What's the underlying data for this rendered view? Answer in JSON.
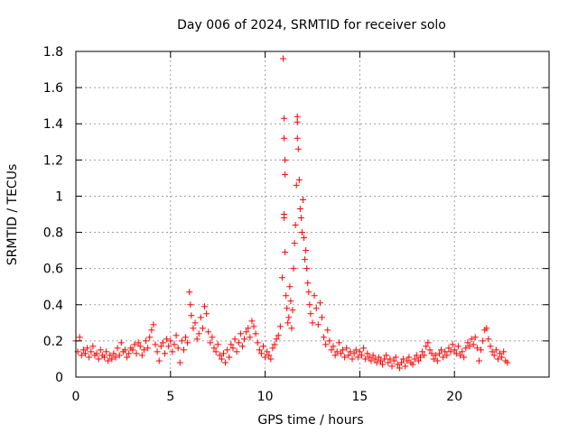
{
  "chart_data": {
    "type": "scatter",
    "title": "Day 006 of 2024, SRMTID for receiver solo",
    "xlabel": "GPS time / hours",
    "ylabel": "SRMTID / TECUs",
    "xlim": [
      0,
      25
    ],
    "ylim": [
      0,
      1.8
    ],
    "x_ticks": [
      0,
      5,
      10,
      15,
      20
    ],
    "x_tick_labels": [
      "0",
      "5",
      "10",
      "15",
      "20"
    ],
    "y_ticks": [
      0,
      0.2,
      0.4,
      0.6,
      0.8,
      1,
      1.2,
      1.4,
      1.6,
      1.8
    ],
    "y_tick_labels": [
      "0",
      "0.2",
      "0.4",
      "0.6",
      "0.8",
      "1",
      "1.2",
      "1.4",
      "1.6",
      "1.8"
    ],
    "grid": true,
    "marker": "plus",
    "series": [
      {
        "name": "SRMTID",
        "color": "#ff0000",
        "points": [
          [
            0.0,
            0.2
          ],
          [
            0.1,
            0.14
          ],
          [
            0.2,
            0.22
          ],
          [
            0.3,
            0.12
          ],
          [
            0.4,
            0.15
          ],
          [
            0.5,
            0.13
          ],
          [
            0.6,
            0.16
          ],
          [
            0.7,
            0.11
          ],
          [
            0.8,
            0.14
          ],
          [
            0.9,
            0.17
          ],
          [
            1.0,
            0.12
          ],
          [
            1.1,
            0.13
          ],
          [
            1.2,
            0.1
          ],
          [
            1.3,
            0.15
          ],
          [
            1.4,
            0.12
          ],
          [
            1.5,
            0.11
          ],
          [
            1.6,
            0.14
          ],
          [
            1.7,
            0.09
          ],
          [
            1.8,
            0.12
          ],
          [
            1.9,
            0.1
          ],
          [
            2.0,
            0.13
          ],
          [
            2.1,
            0.11
          ],
          [
            2.2,
            0.16
          ],
          [
            2.3,
            0.12
          ],
          [
            2.4,
            0.19
          ],
          [
            2.5,
            0.14
          ],
          [
            2.6,
            0.15
          ],
          [
            2.7,
            0.11
          ],
          [
            2.8,
            0.13
          ],
          [
            2.9,
            0.16
          ],
          [
            3.0,
            0.15
          ],
          [
            3.1,
            0.18
          ],
          [
            3.2,
            0.13
          ],
          [
            3.3,
            0.19
          ],
          [
            3.4,
            0.17
          ],
          [
            3.5,
            0.12
          ],
          [
            3.6,
            0.15
          ],
          [
            3.7,
            0.2
          ],
          [
            3.8,
            0.16
          ],
          [
            3.9,
            0.22
          ],
          [
            4.0,
            0.26
          ],
          [
            4.1,
            0.29
          ],
          [
            4.2,
            0.18
          ],
          [
            4.3,
            0.14
          ],
          [
            4.4,
            0.09
          ],
          [
            4.5,
            0.17
          ],
          [
            4.6,
            0.19
          ],
          [
            4.7,
            0.13
          ],
          [
            4.8,
            0.21
          ],
          [
            4.9,
            0.17
          ],
          [
            5.0,
            0.2
          ],
          [
            5.1,
            0.14
          ],
          [
            5.2,
            0.18
          ],
          [
            5.3,
            0.23
          ],
          [
            5.4,
            0.16
          ],
          [
            5.5,
            0.08
          ],
          [
            5.6,
            0.2
          ],
          [
            5.7,
            0.15
          ],
          [
            5.8,
            0.22
          ],
          [
            5.9,
            0.19
          ],
          [
            6.0,
            0.47
          ],
          [
            6.05,
            0.4
          ],
          [
            6.1,
            0.34
          ],
          [
            6.2,
            0.27
          ],
          [
            6.3,
            0.3
          ],
          [
            6.4,
            0.21
          ],
          [
            6.5,
            0.24
          ],
          [
            6.6,
            0.33
          ],
          [
            6.7,
            0.27
          ],
          [
            6.8,
            0.39
          ],
          [
            6.9,
            0.35
          ],
          [
            7.0,
            0.25
          ],
          [
            7.1,
            0.19
          ],
          [
            7.2,
            0.22
          ],
          [
            7.3,
            0.16
          ],
          [
            7.4,
            0.14
          ],
          [
            7.5,
            0.18
          ],
          [
            7.6,
            0.12
          ],
          [
            7.7,
            0.1
          ],
          [
            7.8,
            0.13
          ],
          [
            7.9,
            0.08
          ],
          [
            8.0,
            0.15
          ],
          [
            8.1,
            0.11
          ],
          [
            8.2,
            0.18
          ],
          [
            8.3,
            0.16
          ],
          [
            8.4,
            0.21
          ],
          [
            8.5,
            0.14
          ],
          [
            8.6,
            0.19
          ],
          [
            8.7,
            0.24
          ],
          [
            8.8,
            0.17
          ],
          [
            8.9,
            0.21
          ],
          [
            9.0,
            0.25
          ],
          [
            9.1,
            0.27
          ],
          [
            9.2,
            0.22
          ],
          [
            9.3,
            0.31
          ],
          [
            9.4,
            0.28
          ],
          [
            9.5,
            0.24
          ],
          [
            9.6,
            0.19
          ],
          [
            9.7,
            0.15
          ],
          [
            9.8,
            0.13
          ],
          [
            9.9,
            0.17
          ],
          [
            10.0,
            0.11
          ],
          [
            10.1,
            0.14
          ],
          [
            10.2,
            0.12
          ],
          [
            10.3,
            0.1
          ],
          [
            10.4,
            0.16
          ],
          [
            10.5,
            0.18
          ],
          [
            10.6,
            0.21
          ],
          [
            10.7,
            0.23
          ],
          [
            10.8,
            0.28
          ],
          [
            10.9,
            0.55
          ],
          [
            10.95,
            1.76
          ],
          [
            11.0,
            1.43
          ],
          [
            11.0,
            1.32
          ],
          [
            11.05,
            1.2
          ],
          [
            11.05,
            1.12
          ],
          [
            11.0,
            0.9
          ],
          [
            11.0,
            0.88
          ],
          [
            11.05,
            0.69
          ],
          [
            11.1,
            0.45
          ],
          [
            11.15,
            0.38
          ],
          [
            11.2,
            0.3
          ],
          [
            11.25,
            0.33
          ],
          [
            11.3,
            0.5
          ],
          [
            11.35,
            0.42
          ],
          [
            11.4,
            0.27
          ],
          [
            11.45,
            0.37
          ],
          [
            11.5,
            0.6
          ],
          [
            11.55,
            0.74
          ],
          [
            11.6,
            0.84
          ],
          [
            11.65,
            1.06
          ],
          [
            11.7,
            1.44
          ],
          [
            11.7,
            1.41
          ],
          [
            11.7,
            1.32
          ],
          [
            11.75,
            1.26
          ],
          [
            11.8,
            1.09
          ],
          [
            11.85,
            0.93
          ],
          [
            11.9,
            0.88
          ],
          [
            11.95,
            0.8
          ],
          [
            12.0,
            0.98
          ],
          [
            12.05,
            0.77
          ],
          [
            12.1,
            0.65
          ],
          [
            12.15,
            0.7
          ],
          [
            12.2,
            0.6
          ],
          [
            12.25,
            0.52
          ],
          [
            12.3,
            0.47
          ],
          [
            12.35,
            0.4
          ],
          [
            12.4,
            0.35
          ],
          [
            12.5,
            0.3
          ],
          [
            12.6,
            0.45
          ],
          [
            12.7,
            0.38
          ],
          [
            12.8,
            0.29
          ],
          [
            12.9,
            0.41
          ],
          [
            13.0,
            0.33
          ],
          [
            13.1,
            0.22
          ],
          [
            13.2,
            0.18
          ],
          [
            13.3,
            0.26
          ],
          [
            13.4,
            0.2
          ],
          [
            13.5,
            0.15
          ],
          [
            13.6,
            0.17
          ],
          [
            13.7,
            0.12
          ],
          [
            13.8,
            0.14
          ],
          [
            13.9,
            0.19
          ],
          [
            14.0,
            0.13
          ],
          [
            14.1,
            0.15
          ],
          [
            14.2,
            0.11
          ],
          [
            14.3,
            0.16
          ],
          [
            14.4,
            0.12
          ],
          [
            14.5,
            0.14
          ],
          [
            14.6,
            0.1
          ],
          [
            14.7,
            0.13
          ],
          [
            14.8,
            0.15
          ],
          [
            14.9,
            0.11
          ],
          [
            15.0,
            0.14
          ],
          [
            15.1,
            0.12
          ],
          [
            15.2,
            0.16
          ],
          [
            15.3,
            0.1
          ],
          [
            15.4,
            0.13
          ],
          [
            15.5,
            0.11
          ],
          [
            15.6,
            0.09
          ],
          [
            15.7,
            0.12
          ],
          [
            15.8,
            0.1
          ],
          [
            15.9,
            0.08
          ],
          [
            16.0,
            0.11
          ],
          [
            16.1,
            0.09
          ],
          [
            16.2,
            0.07
          ],
          [
            16.3,
            0.1
          ],
          [
            16.4,
            0.12
          ],
          [
            16.5,
            0.08
          ],
          [
            16.6,
            0.1
          ],
          [
            16.7,
            0.06
          ],
          [
            16.8,
            0.09
          ],
          [
            16.9,
            0.11
          ],
          [
            17.0,
            0.07
          ],
          [
            17.1,
            0.05
          ],
          [
            17.2,
            0.08
          ],
          [
            17.3,
            0.1
          ],
          [
            17.4,
            0.06
          ],
          [
            17.5,
            0.09
          ],
          [
            17.6,
            0.11
          ],
          [
            17.7,
            0.08
          ],
          [
            17.8,
            0.07
          ],
          [
            17.9,
            0.1
          ],
          [
            18.0,
            0.12
          ],
          [
            18.1,
            0.09
          ],
          [
            18.2,
            0.11
          ],
          [
            18.3,
            0.14
          ],
          [
            18.4,
            0.12
          ],
          [
            18.5,
            0.17
          ],
          [
            18.6,
            0.19
          ],
          [
            18.7,
            0.15
          ],
          [
            18.8,
            0.13
          ],
          [
            18.9,
            0.1
          ],
          [
            19.0,
            0.12
          ],
          [
            19.1,
            0.09
          ],
          [
            19.2,
            0.13
          ],
          [
            19.3,
            0.15
          ],
          [
            19.4,
            0.11
          ],
          [
            19.5,
            0.14
          ],
          [
            19.6,
            0.12
          ],
          [
            19.7,
            0.16
          ],
          [
            19.8,
            0.14
          ],
          [
            19.9,
            0.18
          ],
          [
            20.0,
            0.15
          ],
          [
            20.1,
            0.13
          ],
          [
            20.2,
            0.17
          ],
          [
            20.3,
            0.12
          ],
          [
            20.4,
            0.14
          ],
          [
            20.5,
            0.11
          ],
          [
            20.6,
            0.16
          ],
          [
            20.7,
            0.19
          ],
          [
            20.8,
            0.17
          ],
          [
            20.9,
            0.21
          ],
          [
            21.0,
            0.18
          ],
          [
            21.1,
            0.22
          ],
          [
            21.2,
            0.16
          ],
          [
            21.3,
            0.09
          ],
          [
            21.4,
            0.15
          ],
          [
            21.5,
            0.2
          ],
          [
            21.6,
            0.26
          ],
          [
            21.7,
            0.27
          ],
          [
            21.8,
            0.21
          ],
          [
            21.9,
            0.17
          ],
          [
            22.0,
            0.14
          ],
          [
            22.1,
            0.12
          ],
          [
            22.2,
            0.15
          ],
          [
            22.3,
            0.1
          ],
          [
            22.4,
            0.13
          ],
          [
            22.5,
            0.11
          ],
          [
            22.6,
            0.14
          ],
          [
            22.7,
            0.09
          ],
          [
            22.8,
            0.08
          ]
        ]
      }
    ]
  }
}
